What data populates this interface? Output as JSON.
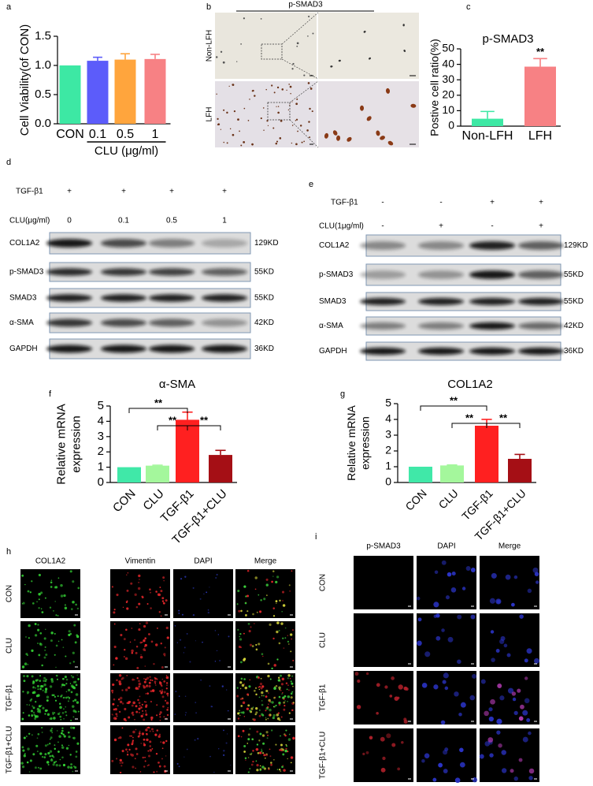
{
  "chart_data": [
    {
      "type": "bar",
      "label": "a",
      "ylabel": [
        "Cell Viability(of CON)"
      ],
      "categories": [
        "CON",
        "0.1",
        "0.5",
        "1"
      ],
      "values": [
        1.0,
        1.08,
        1.1,
        1.11
      ],
      "errors": [
        0,
        0.06,
        0.1,
        0.08
      ],
      "colors": [
        "#3de8a4",
        "#5c5cfa",
        "#ffa53d",
        "#f78184"
      ],
      "xlabel": "CLU (μg/ml)",
      "ylim": [
        0,
        1.5
      ],
      "yticks": [
        {
          "value": 0,
          "label": "0.0"
        },
        0.5,
        {
          "value": 1,
          "label": "1.0"
        },
        1.5
      ]
    },
    {
      "type": "bar",
      "label": "c",
      "title": "p-SMAD3",
      "ylabel": [
        "Postive cell ratio(%)"
      ],
      "categories": [
        "Non-LFH",
        "LFH"
      ],
      "values": [
        4.8,
        38.5
      ],
      "errors": [
        4.7,
        5.2
      ],
      "colors": [
        "#3de8a4",
        "#f78184"
      ],
      "annotations": [
        {
          "category": "LFH",
          "text": "**"
        }
      ],
      "ylim": [
        0,
        50
      ],
      "yticks": [
        0,
        10,
        20,
        30,
        40,
        50
      ]
    },
    {
      "type": "bar",
      "label": "f",
      "title": "α-SMA",
      "ylabel": [
        "Relative mRNA",
        "expression"
      ],
      "categories": [
        "CON",
        "CLU",
        "TGF-β1",
        "TGF-β1+CLU"
      ],
      "values": [
        1.0,
        1.1,
        4.1,
        1.8
      ],
      "errors": [
        0,
        0.03,
        0.5,
        0.3
      ],
      "colors": [
        "#40e8a8",
        "#a4f79c",
        "#ff2020",
        "#a50f15"
      ],
      "comparisons": [
        {
          "pair": [
            "CON",
            "TGF-β1"
          ],
          "text": "**"
        },
        {
          "pair": [
            "CLU",
            "TGF-β1"
          ],
          "text": "**"
        },
        {
          "pair": [
            "TGF-β1",
            "TGF-β1+CLU"
          ],
          "text": "**"
        }
      ],
      "ylim": [
        0,
        5
      ],
      "yticks": [
        0,
        1,
        2,
        3,
        4,
        5
      ]
    },
    {
      "type": "bar",
      "label": "g",
      "title": "COL1A2",
      "ylabel": [
        "Relative mRNA",
        "expression"
      ],
      "categories": [
        "CON",
        "CLU",
        "TGF-β1",
        "TGF-β1+CLU"
      ],
      "values": [
        1.0,
        1.08,
        3.6,
        1.5
      ],
      "errors": [
        0,
        0.03,
        0.4,
        0.28
      ],
      "colors": [
        "#40e8a8",
        "#a4f79c",
        "#ff2020",
        "#a50f15"
      ],
      "comparisons": [
        {
          "pair": [
            "CON",
            "TGF-β1"
          ],
          "text": "**"
        },
        {
          "pair": [
            "CLU",
            "TGF-β1"
          ],
          "text": "**"
        },
        {
          "pair": [
            "TGF-β1",
            "TGF-β1+CLU"
          ],
          "text": "**"
        }
      ],
      "ylim": [
        0,
        5
      ],
      "yticks": [
        0,
        1,
        2,
        3,
        4,
        5
      ]
    }
  ],
  "panels": {
    "b": {
      "label": "b",
      "title": "p-SMAD3",
      "rows": [
        "Non-LFH",
        "LFH"
      ]
    },
    "d": {
      "label": "d",
      "treatments": [
        {
          "name": "TGF-β1",
          "values": [
            "+",
            "+",
            "+",
            "+"
          ]
        },
        {
          "name": "CLU(μg/ml)",
          "values": [
            "0",
            "0.1",
            "0.5",
            "1"
          ]
        }
      ],
      "bands": [
        {
          "name": "COL1A2",
          "size": "129KD"
        },
        {
          "name": "p-SMAD3",
          "size": "55KD"
        },
        {
          "name": "SMAD3",
          "size": "55KD"
        },
        {
          "name": "α-SMA",
          "size": "42KD"
        },
        {
          "name": "GAPDH",
          "size": "36KD"
        }
      ]
    },
    "e": {
      "label": "e",
      "treatments": [
        {
          "name": "TGF-β1",
          "values": [
            "-",
            "-",
            "+",
            "+"
          ]
        },
        {
          "name": "CLU(1μg/ml)",
          "values": [
            "-",
            "+",
            "-",
            "+"
          ]
        }
      ],
      "bands": [
        {
          "name": "COL1A2",
          "size": "129KD"
        },
        {
          "name": "p-SMAD3",
          "size": "55KD"
        },
        {
          "name": "SMAD3",
          "size": "55KD"
        },
        {
          "name": "α-SMA",
          "size": "42KD"
        },
        {
          "name": "GAPDH",
          "size": "36KD"
        }
      ]
    },
    "h": {
      "label": "h",
      "columns": [
        "COL1A2",
        "Vimentin",
        "DAPI",
        "Merge"
      ],
      "rows": [
        "CON",
        "CLU",
        "TGF-β1",
        "TGF-β1+CLU"
      ]
    },
    "i": {
      "label": "i",
      "columns": [
        "p-SMAD3",
        "DAPI",
        "Merge"
      ],
      "rows": [
        "CON",
        "CLU",
        "TGF-β1",
        "TGF-β1+CLU"
      ]
    }
  }
}
